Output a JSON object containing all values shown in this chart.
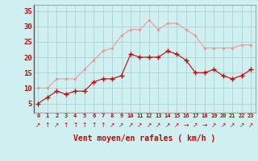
{
  "x": [
    0,
    1,
    2,
    3,
    4,
    5,
    6,
    7,
    8,
    9,
    10,
    11,
    12,
    13,
    14,
    15,
    16,
    17,
    18,
    19,
    20,
    21,
    22,
    23
  ],
  "wind_mean": [
    5,
    7,
    9,
    8,
    9,
    9,
    12,
    13,
    13,
    14,
    21,
    20,
    20,
    20,
    22,
    21,
    19,
    15,
    15,
    16,
    14,
    13,
    14,
    16
  ],
  "wind_gust": [
    10,
    10,
    13,
    13,
    13,
    16,
    19,
    22,
    23,
    27,
    29,
    29,
    32,
    29,
    31,
    31,
    29,
    27,
    23,
    23,
    23,
    23,
    24,
    24
  ],
  "bg_color": "#cff0f0",
  "grid_color": "#aacccc",
  "line_mean_color": "#cc0000",
  "line_gust_color": "#ee9999",
  "xlabel": "Vent moyen/en rafales ( km/h )",
  "xlabel_color": "#cc0000",
  "tick_color": "#cc0000",
  "arrow_color": "#cc0000",
  "ylim": [
    2,
    37
  ],
  "yticks": [
    5,
    10,
    15,
    20,
    25,
    30,
    35
  ],
  "ytick_labels": [
    "5",
    "10",
    "15",
    "20",
    "25",
    "30",
    "35"
  ],
  "arrow_chars": [
    "↗",
    "↑",
    "↗",
    "↑",
    "↑",
    "↑",
    "↑",
    "↑",
    "↗",
    "↗",
    "↗",
    "↗",
    "↗",
    "↗",
    "↗",
    "↗",
    "→",
    "↗",
    "→",
    "↗",
    "↗",
    "↗",
    "↗",
    "↗"
  ]
}
